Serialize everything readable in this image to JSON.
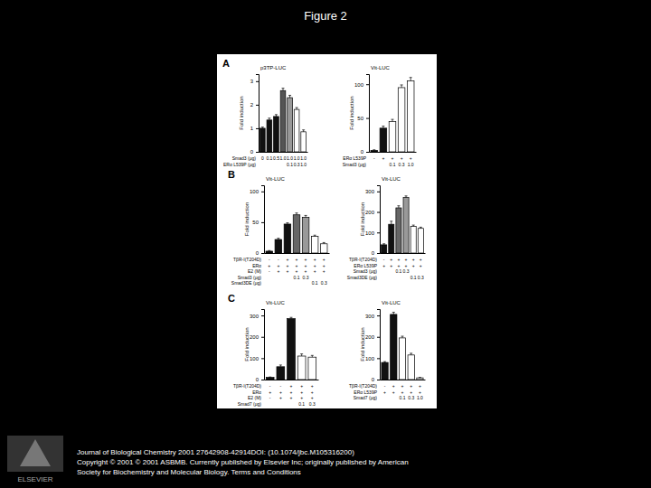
{
  "page": {
    "title": "Figure 2",
    "footer": [
      "Journal of Biological Chemistry 2001 27642908-42914DOI: (10.1074/jbc.M105316200)",
      "Copyright © 2001 © 2001 ASBMB. Currently published by Elsevier Inc; originally published by American",
      "Society for Biochemistry and Molecular Biology. Terms and Conditions"
    ],
    "publisher": "ELSEVIER"
  },
  "chart_data": [
    {
      "type": "bar",
      "title": "p3TP-LUC",
      "y_label": "Fold induction",
      "annotations": [
        "A"
      ],
      "categories": [
        null,
        null,
        null,
        null,
        null,
        null,
        null
      ],
      "values": [
        1.0,
        1.35,
        1.5,
        2.6,
        2.3,
        1.8,
        0.85
      ],
      "errors": [
        0.05,
        0.08,
        0.08,
        0.1,
        0.1,
        0.08,
        0.08
      ],
      "colors": [
        "#111111",
        "#111111",
        "#111111",
        "#555555",
        "#999999",
        "#ffffff",
        "#ffffff"
      ],
      "ylim": [
        0,
        3.3
      ],
      "yticks": [
        0,
        1,
        2,
        3
      ],
      "rows": [
        {
          "label": "Smad3 (μg)",
          "cells": [
            "0",
            "0.1",
            "0.5",
            "1.0",
            "1.0",
            "1.0",
            "1.0"
          ]
        },
        {
          "label": "ERα L539P (μg)",
          "cells": [
            null,
            null,
            null,
            null,
            "0.1",
            "0.3",
            "1.0"
          ]
        }
      ]
    },
    {
      "type": "bar",
      "title": "Vit-LUC",
      "y_label": "Fold induction",
      "categories": [
        null,
        null,
        null,
        null,
        null
      ],
      "values": [
        2,
        35,
        45,
        95,
        105
      ],
      "errors": [
        1,
        3,
        3,
        4,
        5
      ],
      "colors": [
        "#111111",
        "#111111",
        "#ffffff",
        "#ffffff",
        "#ffffff"
      ],
      "ylim": [
        0,
        115
      ],
      "yticks": [
        0,
        50,
        100
      ],
      "rows": [
        {
          "label": "ERα L539P",
          "cells": [
            "-",
            "+",
            "+",
            "+",
            "+"
          ]
        },
        {
          "label": "Smad3 (μg)",
          "cells": [
            null,
            null,
            "0.1",
            "0.3",
            "1.0"
          ]
        }
      ]
    },
    {
      "type": "bar",
      "title": "Vit-LUC",
      "y_label": "Fold induction",
      "annotations": [
        "B"
      ],
      "categories": [
        null,
        null,
        null,
        null,
        null,
        null,
        null
      ],
      "values": [
        3,
        22,
        47,
        62,
        58,
        27,
        15
      ],
      "errors": [
        1,
        2,
        2,
        3,
        3,
        2,
        2
      ],
      "colors": [
        "#111111",
        "#111111",
        "#111111",
        "#666666",
        "#999999",
        "#ffffff",
        "#ffffff"
      ],
      "ylim": [
        0,
        110
      ],
      "yticks": [
        0,
        50,
        100
      ],
      "rows": [
        {
          "label": "TβR-I(T204D)",
          "cells": [
            "-",
            "-",
            "+",
            "+",
            "+",
            "+",
            "+"
          ]
        },
        {
          "label": "ERα",
          "cells": [
            "+",
            "+",
            "+",
            "+",
            "+",
            "+",
            "+"
          ]
        },
        {
          "label": "E2 (M)",
          "cells": [
            "-",
            "+",
            "+",
            "+",
            "+",
            "+",
            "+"
          ]
        },
        {
          "label": "Smad3 (μg)",
          "cells": [
            null,
            null,
            null,
            "0.1",
            "0.3",
            null,
            null
          ]
        },
        {
          "label": "Smad3DE (μg)",
          "cells": [
            null,
            null,
            null,
            null,
            null,
            "0.1",
            "0.3"
          ]
        }
      ]
    },
    {
      "type": "bar",
      "title": "Vit-LUC",
      "y_label": "Fold induction",
      "categories": [
        null,
        null,
        null,
        null,
        null,
        null
      ],
      "values": [
        40,
        140,
        220,
        270,
        130,
        120
      ],
      "errors": [
        5,
        15,
        10,
        8,
        6,
        6
      ],
      "colors": [
        "#111111",
        "#111111",
        "#666666",
        "#999999",
        "#ffffff",
        "#ffffff"
      ],
      "ylim": [
        0,
        330
      ],
      "yticks": [
        0,
        100,
        200,
        300
      ],
      "rows": [
        {
          "label": "TβR-I(T204D)",
          "cells": [
            "-",
            "+",
            "+",
            "+",
            "+",
            "+"
          ]
        },
        {
          "label": "ERα L539P",
          "cells": [
            "+",
            "+",
            "+",
            "+",
            "+",
            "+"
          ]
        },
        {
          "label": "Smad3 (μg)",
          "cells": [
            null,
            null,
            "0.1",
            "0.3",
            null,
            null
          ]
        },
        {
          "label": "Smad3DE (μg)",
          "cells": [
            null,
            null,
            null,
            null,
            "0.1",
            "0.3"
          ]
        }
      ]
    },
    {
      "type": "bar",
      "title": "Vit-LUC",
      "y_label": "Fold induction",
      "annotations": [
        "C"
      ],
      "categories": [
        null,
        null,
        null,
        null,
        null
      ],
      "values": [
        10,
        60,
        285,
        110,
        105
      ],
      "errors": [
        2,
        8,
        6,
        10,
        8
      ],
      "colors": [
        "#111111",
        "#111111",
        "#111111",
        "#ffffff",
        "#ffffff"
      ],
      "ylim": [
        0,
        330
      ],
      "yticks": [
        0,
        100,
        200,
        300
      ],
      "rows": [
        {
          "label": "TβR-I(T204D)",
          "cells": [
            "-",
            "-",
            "+",
            "+",
            "+"
          ]
        },
        {
          "label": "ERα",
          "cells": [
            "+",
            "+",
            "+",
            "+",
            "+"
          ]
        },
        {
          "label": "E2 (M)",
          "cells": [
            "-",
            "+",
            "+",
            "+",
            "+"
          ]
        },
        {
          "label": "Smad7 (μg)",
          "cells": [
            null,
            null,
            null,
            "0.1",
            "0.3"
          ]
        }
      ]
    },
    {
      "type": "bar",
      "title": "Vit-LUC",
      "y_label": "Fold induction",
      "categories": [
        null,
        null,
        null,
        null,
        null
      ],
      "values": [
        80,
        305,
        195,
        115,
        8
      ],
      "errors": [
        4,
        10,
        8,
        8,
        2
      ],
      "colors": [
        "#111111",
        "#111111",
        "#ffffff",
        "#ffffff",
        "#ffffff"
      ],
      "ylim": [
        0,
        330
      ],
      "yticks": [
        0,
        100,
        200,
        300
      ],
      "rows": [
        {
          "label": "TβR-I(T204D)",
          "cells": [
            "-",
            "+",
            "+",
            "+",
            "+"
          ]
        },
        {
          "label": "ERα L539P",
          "cells": [
            "+",
            "+",
            "+",
            "+",
            "+"
          ]
        },
        {
          "label": "Smad7 (μg)",
          "cells": [
            null,
            null,
            "0.1",
            "0.3",
            "1.0"
          ]
        }
      ]
    }
  ]
}
